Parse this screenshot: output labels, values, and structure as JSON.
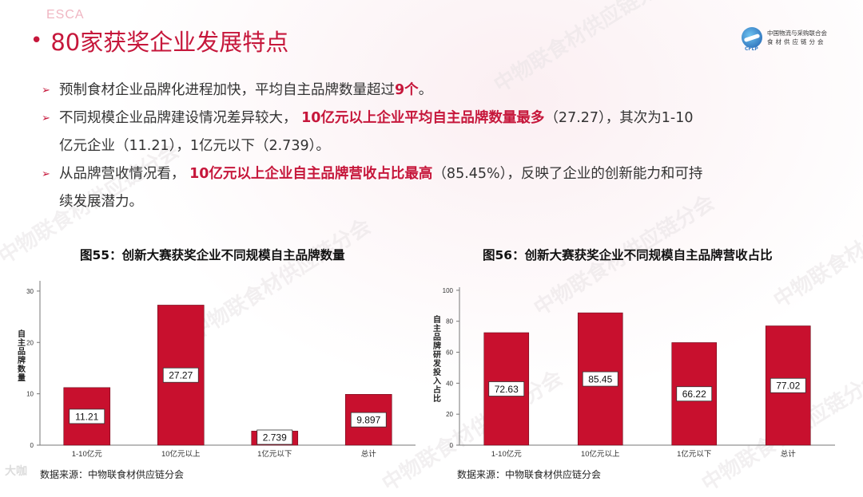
{
  "header": {
    "org_logo_text": "ESCA",
    "title_bullet": "•",
    "title": "80家获奖企业发展特点",
    "cflp_line1": "中国物流与采购联合会",
    "cflp_line2": "食材供应链分会",
    "cflp_abbr": "CFLP"
  },
  "bullets": [
    {
      "arrow": "➢",
      "parts": [
        "预制食材企业品牌化进程加快，平均自主品牌数量超过",
        "9个",
        "。"
      ]
    },
    {
      "arrow": "➢",
      "line1_parts": [
        "不同规模企业品牌建设情况差异较大，",
        "10亿元以上企业平均自主品牌数量最多",
        "（27.27），其次为1-10"
      ],
      "line2": "亿元企业（11.21），1亿元以下（2.739）。"
    },
    {
      "arrow": "➢",
      "line1_parts": [
        "从品牌营收情况看，",
        "10亿元以上企业自主品牌营收占比最高",
        "（85.45%），反映了企业的创新能力和可持"
      ],
      "line2": "续发展潜力。"
    }
  ],
  "watermark_text": "中物联食材供应链分会",
  "bottom_logo_text": "大咖",
  "chart_data": [
    {
      "type": "bar",
      "title": "图55：创新大赛获奖企业不同规模自主品牌数量",
      "categories": [
        "1-10亿元",
        "10亿元以上",
        "1亿元以下",
        "总计"
      ],
      "values": [
        11.21,
        27.27,
        2.739,
        9.897
      ],
      "value_labels": [
        "11.21",
        "27.27",
        "2.739",
        "9.897"
      ],
      "ylabel": "自主品牌数量",
      "yticks": [
        "0",
        "10",
        "20",
        "30"
      ],
      "ylim": [
        0,
        32
      ],
      "bar_color": "#c8102e",
      "source": "数据来源：中物联食材供应链分会"
    },
    {
      "type": "bar",
      "title": "图56：创新大赛获奖企业不同规模自主品牌营收占比",
      "categories": [
        "1-10亿元",
        "10亿元以上",
        "1亿元以下",
        "总计"
      ],
      "values": [
        72.63,
        85.45,
        66.22,
        77.02
      ],
      "value_labels": [
        "72.63",
        "85.45",
        "66.22",
        "77.02"
      ],
      "ylabel": "自主品牌研发投入占比",
      "yticks": [
        "0",
        "20",
        "40",
        "60",
        "80",
        "100"
      ],
      "ylim": [
        0,
        102
      ],
      "bar_color": "#c8102e",
      "source": "数据来源：中物联食材供应链分会"
    }
  ]
}
